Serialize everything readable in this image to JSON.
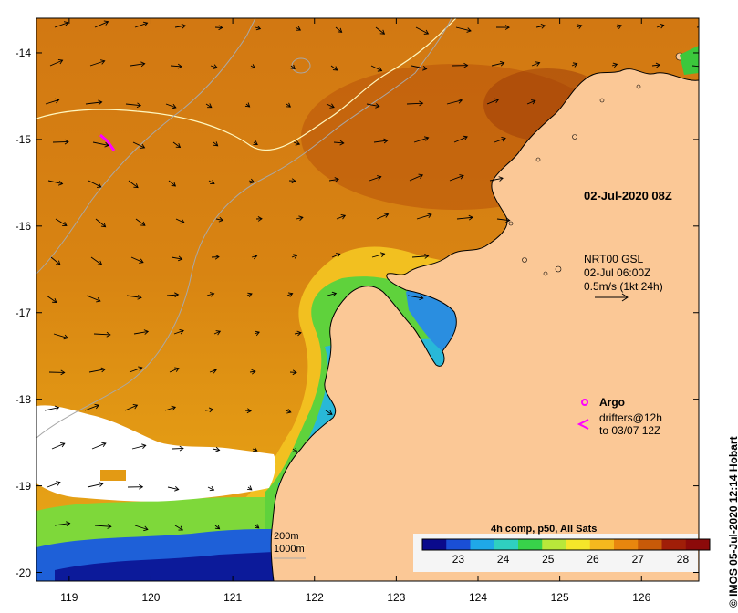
{
  "map": {
    "lon_ticks": [
      "119",
      "120",
      "121",
      "122",
      "123",
      "124",
      "125",
      "126"
    ],
    "lat_ticks": [
      "-14",
      "-15",
      "-16",
      "-17",
      "-18",
      "-19",
      "-20"
    ],
    "lon_range": [
      118.6,
      126.7
    ],
    "lat_range": [
      -20.1,
      -13.6
    ]
  },
  "annotations": {
    "snapshot_time": "02-Jul-2020 08Z",
    "current_source": "NRT00 GSL",
    "current_time": "02-Jul 06:00Z",
    "current_scale": "0.5m/s (1kt 24h)",
    "argo_label": "Argo",
    "drifters_line1": "drifters@12h",
    "drifters_line2": "to 03/07 12Z",
    "depth_200": "200m",
    "depth_1000": "1000m"
  },
  "colorbar": {
    "title": "4h comp, p50, All Sats",
    "ticks": [
      "23",
      "24",
      "25",
      "26",
      "27",
      "28"
    ],
    "range": [
      22.2,
      28.6
    ],
    "colors": [
      "#0a0a8c",
      "#1a4fd6",
      "#1fa8e8",
      "#2fd0c0",
      "#38d24a",
      "#b8e83a",
      "#f5e62a",
      "#f5b81e",
      "#e8860e",
      "#c85a08",
      "#a01e08",
      "#8c0a0a"
    ]
  },
  "credit": "© IMOS 05-Jul-2020 12:14 Hobart",
  "colors": {
    "land": "#fbc896",
    "cloud": "#ffffff",
    "warm_sea": "#d8820e",
    "drifter": "#ff00ff"
  }
}
